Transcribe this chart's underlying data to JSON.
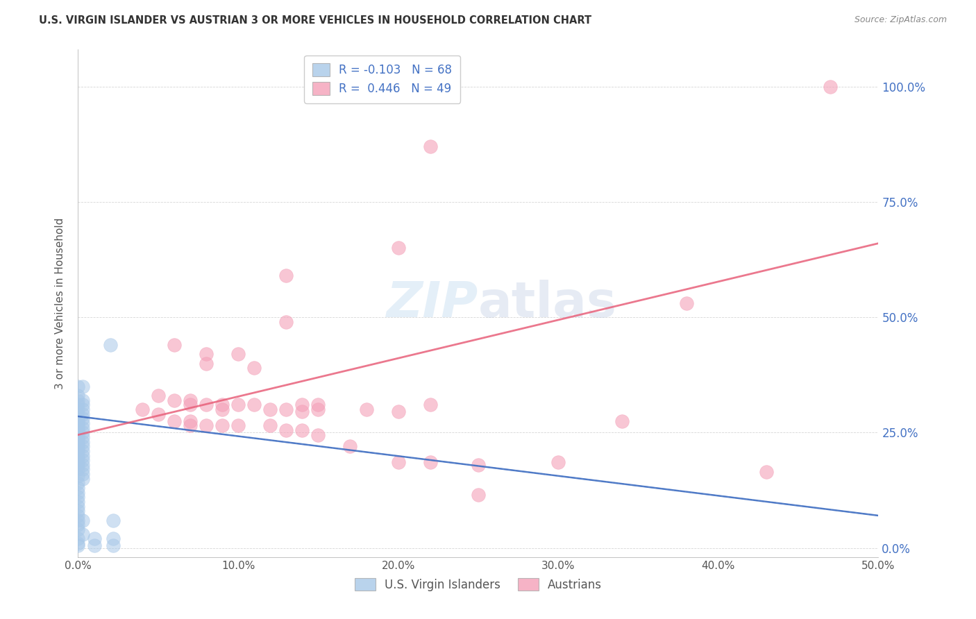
{
  "title": "U.S. VIRGIN ISLANDER VS AUSTRIAN 3 OR MORE VEHICLES IN HOUSEHOLD CORRELATION CHART",
  "source": "Source: ZipAtlas.com",
  "ylabel_label": "3 or more Vehicles in Household",
  "xlim": [
    0.0,
    0.5
  ],
  "ylim": [
    -0.02,
    1.08
  ],
  "watermark_zip": "ZIP",
  "watermark_atlas": "atlas",
  "vi_color": "#a8c8e8",
  "au_color": "#f4a0b8",
  "vi_line_color": "#4472c4",
  "au_line_color": "#e8607a",
  "vi_line_style": "solid",
  "au_line_style": "solid",
  "vi_scatter": [
    [
      0.0,
      0.35
    ],
    [
      0.0,
      0.33
    ],
    [
      0.0,
      0.32
    ],
    [
      0.0,
      0.31
    ],
    [
      0.0,
      0.3
    ],
    [
      0.0,
      0.29
    ],
    [
      0.0,
      0.28
    ],
    [
      0.0,
      0.275
    ],
    [
      0.0,
      0.27
    ],
    [
      0.0,
      0.265
    ],
    [
      0.0,
      0.26
    ],
    [
      0.0,
      0.255
    ],
    [
      0.0,
      0.25
    ],
    [
      0.0,
      0.245
    ],
    [
      0.0,
      0.24
    ],
    [
      0.0,
      0.235
    ],
    [
      0.0,
      0.23
    ],
    [
      0.0,
      0.225
    ],
    [
      0.0,
      0.22
    ],
    [
      0.0,
      0.215
    ],
    [
      0.0,
      0.21
    ],
    [
      0.0,
      0.2
    ],
    [
      0.0,
      0.195
    ],
    [
      0.0,
      0.185
    ],
    [
      0.0,
      0.18
    ],
    [
      0.0,
      0.17
    ],
    [
      0.0,
      0.155
    ],
    [
      0.0,
      0.14
    ],
    [
      0.0,
      0.13
    ],
    [
      0.0,
      0.12
    ],
    [
      0.0,
      0.11
    ],
    [
      0.0,
      0.1
    ],
    [
      0.0,
      0.09
    ],
    [
      0.0,
      0.08
    ],
    [
      0.0,
      0.07
    ],
    [
      0.0,
      0.06
    ],
    [
      0.0,
      0.05
    ],
    [
      0.0,
      0.04
    ],
    [
      0.0,
      0.02
    ],
    [
      0.0,
      0.01
    ],
    [
      0.0,
      0.005
    ],
    [
      0.003,
      0.35
    ],
    [
      0.003,
      0.32
    ],
    [
      0.003,
      0.31
    ],
    [
      0.003,
      0.3
    ],
    [
      0.003,
      0.29
    ],
    [
      0.003,
      0.28
    ],
    [
      0.003,
      0.27
    ],
    [
      0.003,
      0.26
    ],
    [
      0.003,
      0.25
    ],
    [
      0.003,
      0.24
    ],
    [
      0.003,
      0.23
    ],
    [
      0.003,
      0.22
    ],
    [
      0.003,
      0.21
    ],
    [
      0.003,
      0.2
    ],
    [
      0.003,
      0.19
    ],
    [
      0.003,
      0.18
    ],
    [
      0.003,
      0.17
    ],
    [
      0.003,
      0.16
    ],
    [
      0.003,
      0.15
    ],
    [
      0.003,
      0.06
    ],
    [
      0.003,
      0.03
    ],
    [
      0.02,
      0.44
    ],
    [
      0.022,
      0.06
    ],
    [
      0.022,
      0.02
    ],
    [
      0.022,
      0.005
    ],
    [
      0.01,
      0.02
    ],
    [
      0.01,
      0.005
    ]
  ],
  "au_scatter": [
    [
      0.22,
      0.87
    ],
    [
      0.13,
      0.59
    ],
    [
      0.2,
      0.65
    ],
    [
      0.13,
      0.49
    ],
    [
      0.06,
      0.44
    ],
    [
      0.08,
      0.42
    ],
    [
      0.08,
      0.4
    ],
    [
      0.1,
      0.42
    ],
    [
      0.11,
      0.39
    ],
    [
      0.05,
      0.33
    ],
    [
      0.06,
      0.32
    ],
    [
      0.07,
      0.32
    ],
    [
      0.07,
      0.31
    ],
    [
      0.08,
      0.31
    ],
    [
      0.09,
      0.31
    ],
    [
      0.09,
      0.3
    ],
    [
      0.1,
      0.31
    ],
    [
      0.11,
      0.31
    ],
    [
      0.12,
      0.3
    ],
    [
      0.13,
      0.3
    ],
    [
      0.14,
      0.295
    ],
    [
      0.14,
      0.31
    ],
    [
      0.15,
      0.3
    ],
    [
      0.15,
      0.31
    ],
    [
      0.18,
      0.3
    ],
    [
      0.2,
      0.295
    ],
    [
      0.22,
      0.31
    ],
    [
      0.04,
      0.3
    ],
    [
      0.05,
      0.29
    ],
    [
      0.06,
      0.275
    ],
    [
      0.07,
      0.275
    ],
    [
      0.07,
      0.265
    ],
    [
      0.08,
      0.265
    ],
    [
      0.09,
      0.265
    ],
    [
      0.1,
      0.265
    ],
    [
      0.12,
      0.265
    ],
    [
      0.13,
      0.255
    ],
    [
      0.14,
      0.255
    ],
    [
      0.15,
      0.245
    ],
    [
      0.17,
      0.22
    ],
    [
      0.2,
      0.185
    ],
    [
      0.22,
      0.185
    ],
    [
      0.25,
      0.18
    ],
    [
      0.25,
      0.115
    ],
    [
      0.3,
      0.185
    ],
    [
      0.34,
      0.275
    ],
    [
      0.38,
      0.53
    ],
    [
      0.43,
      0.165
    ],
    [
      0.47,
      1.0
    ]
  ],
  "vi_trend_x": [
    0.0,
    0.5
  ],
  "vi_trend_y": [
    0.285,
    0.07
  ],
  "au_trend_x": [
    0.0,
    0.5
  ],
  "au_trend_y": [
    0.245,
    0.66
  ]
}
